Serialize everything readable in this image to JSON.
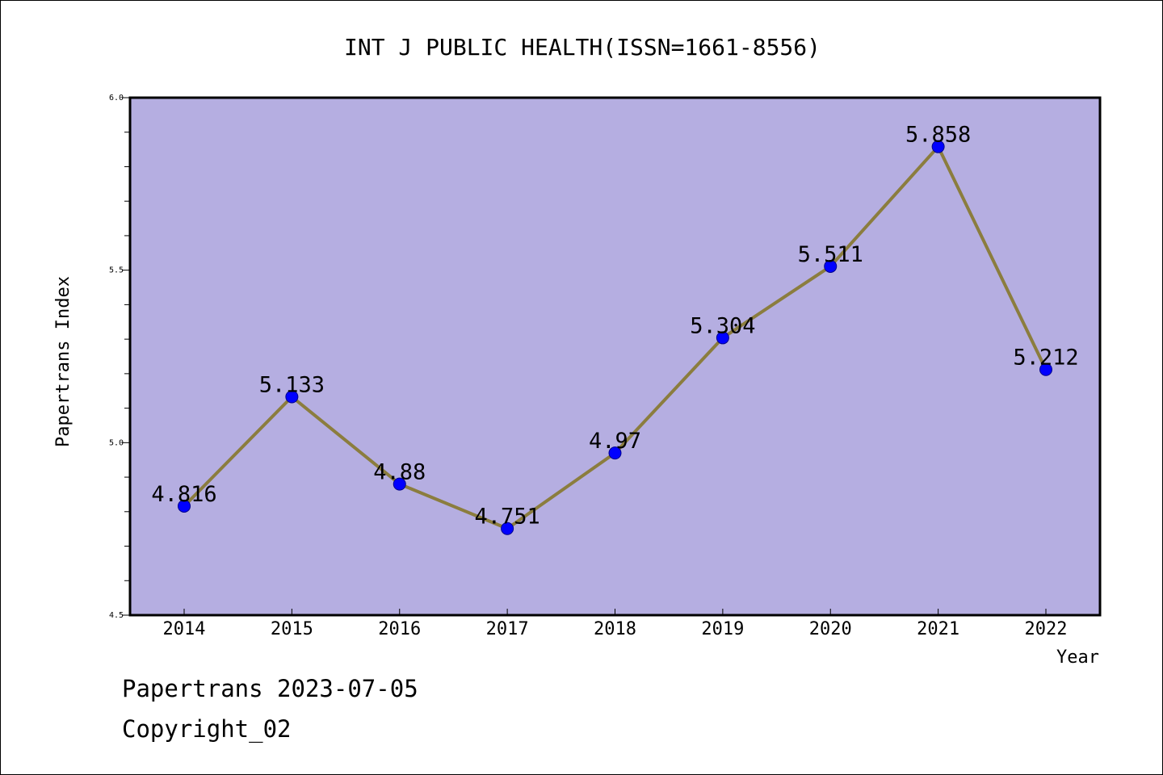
{
  "chart_data": {
    "type": "line",
    "title": "INT J PUBLIC HEALTH(ISSN=1661-8556)",
    "xlabel": "Year",
    "ylabel": "Papertrans Index",
    "categories": [
      "2014",
      "2015",
      "2016",
      "2017",
      "2018",
      "2019",
      "2020",
      "2021",
      "2022"
    ],
    "series": [
      {
        "values": [
          4.816,
          5.133,
          4.88,
          4.751,
          4.97,
          5.304,
          5.511,
          5.858,
          5.212
        ],
        "labels": [
          "4.816",
          "5.133",
          "4.88",
          "4.751",
          "4.97",
          "5.304",
          "5.511",
          "5.858",
          "5.212"
        ]
      }
    ],
    "ylim": [
      4.5,
      6.0
    ],
    "yticks": [
      "4.5",
      "5.0",
      "5.5",
      "6.0"
    ],
    "y_minor_step": 0.1,
    "grid": false,
    "colors": {
      "plot_background": "#b5aee1",
      "line": "#8b7d3e",
      "marker": "#0000ff",
      "frame": "#000000"
    }
  },
  "footer": {
    "line1": "Papertrans 2023-07-05",
    "line2": "Copyright_02"
  }
}
